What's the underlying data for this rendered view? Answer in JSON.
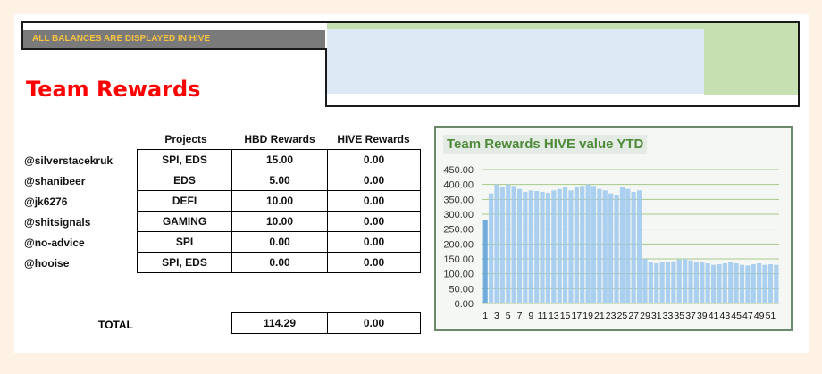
{
  "banner": {
    "note": "ALL BALANCES ARE DISPLAYED IN HIVE"
  },
  "page_title": "Team Rewards",
  "table": {
    "headers": [
      "Projects",
      "HBD Rewards",
      "HIVE Rewards"
    ],
    "rows": [
      {
        "user": "@silverstacekruk",
        "projects": "SPI, EDS",
        "hbd": "15.00",
        "hive": "0.00"
      },
      {
        "user": "@shanibeer",
        "projects": "EDS",
        "hbd": "5.00",
        "hive": "0.00"
      },
      {
        "user": "@jk6276",
        "projects": "DEFI",
        "hbd": "10.00",
        "hive": "0.00"
      },
      {
        "user": "@shitsignals",
        "projects": "GAMING",
        "hbd": "10.00",
        "hive": "0.00"
      },
      {
        "user": "@no-advice",
        "projects": "SPI",
        "hbd": "0.00",
        "hive": "0.00"
      },
      {
        "user": "@hooise",
        "projects": "SPI, EDS",
        "hbd": "0.00",
        "hive": "0.00"
      }
    ],
    "total_label": "TOTAL",
    "total_hbd": "114.29",
    "total_hive": "0.00"
  },
  "chart_data": {
    "type": "bar",
    "title": "Team Rewards HIVE value YTD",
    "ylim": [
      0,
      450
    ],
    "yticks": [
      "0.00",
      "50.00",
      "100.00",
      "150.00",
      "200.00",
      "250.00",
      "300.00",
      "350.00",
      "400.00",
      "450.00"
    ],
    "x_tick_labels": [
      "1",
      "3",
      "5",
      "7",
      "9",
      "11",
      "13",
      "15",
      "17",
      "19",
      "21",
      "23",
      "25",
      "27",
      "29",
      "31",
      "33",
      "35",
      "37",
      "39",
      "41",
      "43",
      "45",
      "47",
      "49",
      "51"
    ],
    "categories": [
      "1",
      "2",
      "3",
      "4",
      "5",
      "6",
      "7",
      "8",
      "9",
      "10",
      "11",
      "12",
      "13",
      "14",
      "15",
      "16",
      "17",
      "18",
      "19",
      "20",
      "21",
      "22",
      "23",
      "24",
      "25",
      "26",
      "27",
      "28",
      "29",
      "30",
      "31",
      "32",
      "33",
      "34",
      "35",
      "36",
      "37",
      "38",
      "39",
      "40",
      "41",
      "42",
      "43",
      "44",
      "45",
      "46",
      "47",
      "48",
      "49",
      "50",
      "51",
      "52"
    ],
    "values": [
      280,
      370,
      400,
      390,
      400,
      395,
      385,
      375,
      380,
      378,
      375,
      372,
      380,
      385,
      390,
      380,
      390,
      395,
      400,
      395,
      385,
      380,
      370,
      365,
      390,
      385,
      375,
      380,
      150,
      140,
      135,
      140,
      138,
      142,
      148,
      150,
      145,
      140,
      138,
      135,
      130,
      132,
      135,
      138,
      135,
      130,
      128,
      132,
      135,
      130,
      132,
      130
    ],
    "colors": {
      "bar": "#9dc8ec",
      "bar_highlight": "#5a9fd8",
      "grid": "#a9c98a"
    }
  }
}
